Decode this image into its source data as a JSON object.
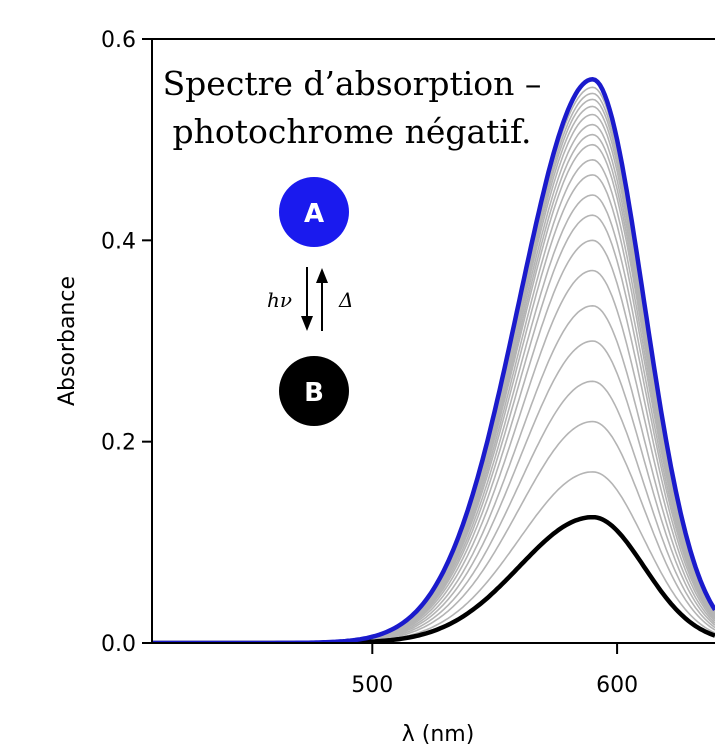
{
  "chart_data": {
    "type": "line",
    "title_lines": [
      "Spectre d’absorption –",
      "photochrome négatif."
    ],
    "xlabel": "λ (nm)",
    "ylabel": "Absorbance",
    "xlim": [
      410,
      640
    ],
    "ylim": [
      0,
      0.6
    ],
    "xticks": [
      500,
      600
    ],
    "yticks": [
      0.0,
      0.2,
      0.4,
      0.6
    ],
    "ytick_labels": [
      "0.0",
      "0.2",
      "0.4",
      "0.6"
    ],
    "xtick_labels": [
      "500",
      "600"
    ],
    "grid": false,
    "peak_wavelength": 590,
    "series": [
      {
        "role": "initial",
        "color": "#1a1acc",
        "peak_absorbance": 0.56
      },
      {
        "role": "intermediate",
        "color": "#b4b4b4",
        "peak_absorbances": [
          0.17,
          0.22,
          0.26,
          0.3,
          0.335,
          0.37,
          0.4,
          0.425,
          0.445,
          0.465,
          0.48,
          0.495,
          0.505,
          0.515,
          0.525,
          0.533,
          0.54,
          0.546,
          0.552
        ]
      },
      {
        "role": "final",
        "color": "#000000",
        "peak_absorbance": 0.125
      }
    ]
  },
  "scheme": {
    "state_a": {
      "letter": "A",
      "color": "#1a1aee"
    },
    "state_b": {
      "letter": "B",
      "color": "#000000"
    },
    "forward_label": "hν",
    "reverse_label": "Δ"
  }
}
